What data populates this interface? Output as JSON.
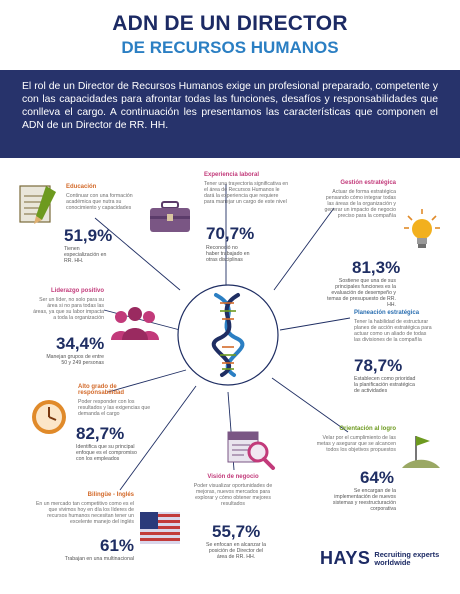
{
  "header": {
    "title_line1": "ADN DE UN DIRECTOR",
    "title_line2": "DE RECURSOS HUMANOS",
    "intro": "El rol de un Director de Recursos Humanos exige un profesional preparado, competente y con las capacidades para afrontar todas las funciones, desafíos y responsabilidades que conlleva el cargo. A continuación les presentamos las características que componen el ADN de un Director de RR. HH."
  },
  "sections": {
    "educacion": {
      "heading": "Educación",
      "body": "Continuar con una formación académica que nutra su conocimiento y capacidades",
      "percent": "51,9%",
      "caption": "Tienen especialización en RR. HH."
    },
    "experiencia": {
      "heading": "Experiencia laboral",
      "body": "Tener una trayectoria significativa en el área de Recursos Humanos le dará la experiencia que requiere para manejar un cargo de este nivel",
      "percent": "70,7%",
      "caption": "Reconoció no haber trabajado en otras disciplinas"
    },
    "gestion": {
      "heading": "Gestión estratégica",
      "body": "Actuar de forma estratégica pensando cómo integrar todas las áreas de la organización y generar un impacto de negocio preciso para la compañía",
      "percent": "81,3%",
      "caption": "Sostiene que una de sus principales funciones es la evaluación de desempeño y temas de presupuesto de RR. HH."
    },
    "liderazgo": {
      "heading": "Liderazgo positivo",
      "body": "Ser un líder, no solo para su área si no para todas las áreas, ya que su labor impacta a toda la organización",
      "percent": "34,4%",
      "caption": "Manejan grupos de entre 50 y 249 personas"
    },
    "planeacion": {
      "heading": "Planeación estratégica",
      "body": "Tener la habilidad de estructurar planes de acción estratégica para actuar como un aliado de todas las divisiones de la compañía",
      "percent": "78,7%",
      "caption": "Establecen como prioridad la planificación estratégica de actividades"
    },
    "responsabilidad": {
      "heading": "Alto grado de responsabilidad",
      "body": "Poder responder con los resultados y las exigencias que demanda el cargo",
      "percent": "82,7%",
      "caption": "Identifica que su principal enfoque es el compromiso con los empleados"
    },
    "logro": {
      "heading": "Orientación al logro",
      "body": "Velar por el cumplimiento de las metas y asegurar que se alcancen todos los objetivos propuestos",
      "percent": "64%",
      "caption": "Se encargan de la implementación de nuevos sistemas y reestructuración corporativa"
    },
    "vision": {
      "heading": "Visión de negocio",
      "body": "Poder visualizar oportunidades de mejoras, nuevos mercados para explorar y cómo obtener mejores resultados",
      "percent": "55,7%",
      "caption": "Se enfocan en alcanzar la posición de Director del área de RR. HH."
    },
    "bilingue": {
      "heading": "Bilingüe - Inglés",
      "body": "En un mercado tan competitivo como es el que vivimos hoy en día los líderes de recursos humanos necesitan tener un excelente manejo del inglés",
      "percent": "61%",
      "caption": "Trabajan en una multinacional"
    }
  },
  "icons": {
    "educacion": "notepad-pencil-icon",
    "experiencia": "briefcase-icon",
    "gestion": "lightbulb-icon",
    "liderazgo": "people-group-icon",
    "responsabilidad": "clock-icon",
    "vision": "news-magnifier-icon",
    "logro": "flag-on-hill-icon",
    "bilingue": "us-flag-icon",
    "center": "dna-helix-icon"
  },
  "footer": {
    "brand": "HAYS",
    "tagline_line1": "Recruiting experts",
    "tagline_line2": "worldwide"
  },
  "colors": {
    "navy": "#1c2a64",
    "blue": "#2b7fc3",
    "banner": "#27336b",
    "orange": "#d36a2a",
    "pink": "#c23a7a",
    "green": "#6d9a1f"
  }
}
